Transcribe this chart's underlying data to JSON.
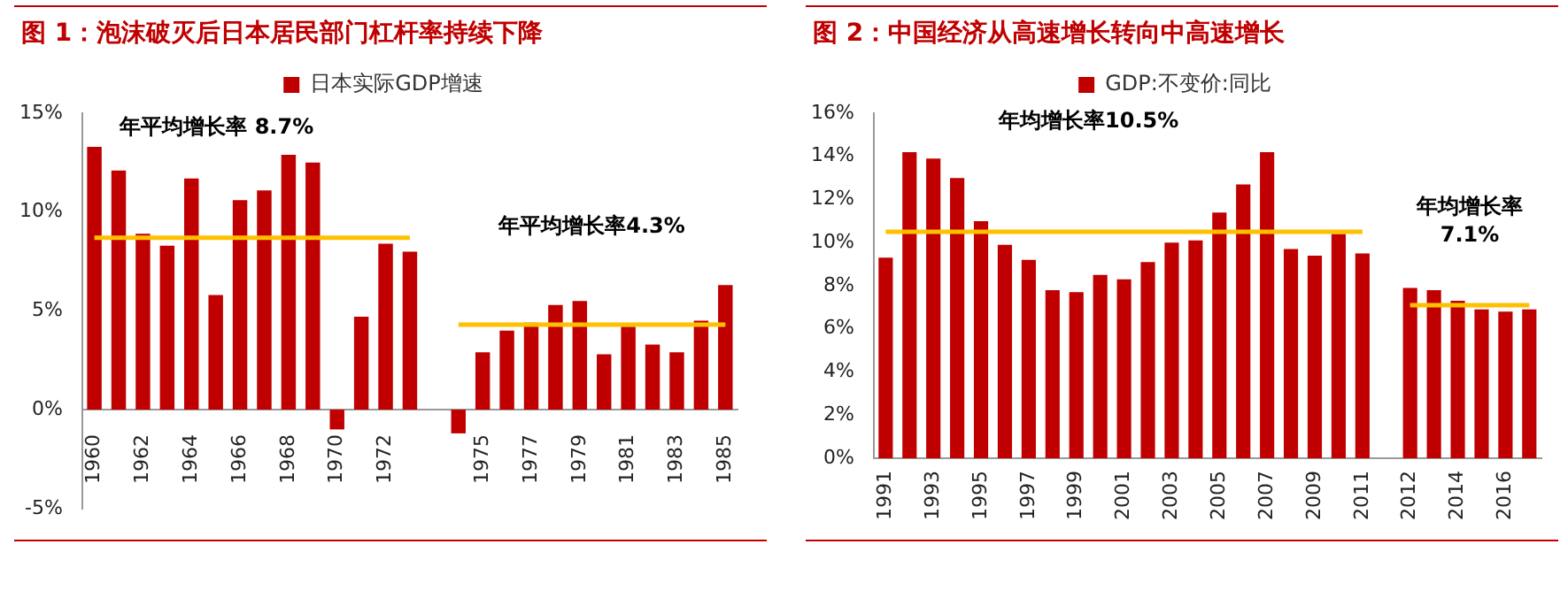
{
  "chart_data": [
    {
      "type": "bar",
      "title": "图 1：泡沫破灭后日本居民部门杠杆率持续下降",
      "categories": [
        "1960",
        null,
        "1962",
        null,
        "1964",
        null,
        "1966",
        null,
        "1968",
        null,
        "1970",
        null,
        "1972",
        null,
        null,
        null,
        "1975",
        null,
        "1977",
        null,
        "1979",
        null,
        "1981",
        null,
        "1983",
        null,
        "1985"
      ],
      "series": [
        {
          "name": "日本实际GDP增速",
          "color": "#c00000",
          "values": [
            13.3,
            12.1,
            8.9,
            8.3,
            11.7,
            5.8,
            10.6,
            11.1,
            12.9,
            12.5,
            -1.0,
            4.7,
            8.4,
            8.0,
            null,
            -1.2,
            2.9,
            4.0,
            4.4,
            5.3,
            5.5,
            2.8,
            4.2,
            3.3,
            2.9,
            4.5,
            6.3
          ]
        },
        {
          "type": "line",
          "color": "#ffc000",
          "values": [
            8.7,
            8.7,
            8.7,
            8.7,
            8.7,
            8.7,
            8.7,
            8.7,
            8.7,
            8.7,
            8.7,
            8.7,
            8.7,
            8.7,
            null,
            null,
            null,
            null,
            null,
            null,
            null,
            null,
            null,
            null,
            null,
            null,
            null
          ]
        },
        {
          "type": "line",
          "color": "#ffc000",
          "values": [
            null,
            null,
            null,
            null,
            null,
            null,
            null,
            null,
            null,
            null,
            null,
            null,
            null,
            null,
            null,
            4.3,
            4.3,
            4.3,
            4.3,
            4.3,
            4.3,
            4.3,
            4.3,
            4.3,
            4.3,
            4.3,
            4.3
          ]
        }
      ],
      "annotations": [
        "年平均增长率 8.7%",
        "年平均增长率4.3%"
      ],
      "ylim": [
        -5,
        15
      ],
      "yticks": [
        {
          "value": -5,
          "label": "-5%"
        },
        {
          "value": 0,
          "label": "0%"
        },
        {
          "value": 5,
          "label": "5%"
        },
        {
          "value": 10,
          "label": "10%"
        },
        {
          "value": 15,
          "label": "15%"
        }
      ],
      "legend": "top",
      "grid": false
    },
    {
      "type": "bar",
      "title": "图 2：中国经济从高速增长转向中高速增长",
      "categories": [
        "1991",
        null,
        "1993",
        null,
        "1995",
        null,
        "1997",
        null,
        "1999",
        null,
        "2001",
        null,
        "2003",
        null,
        "2005",
        null,
        "2007",
        null,
        "2009",
        null,
        "2011",
        null,
        "2012",
        null,
        "2014",
        null,
        "2016",
        null
      ],
      "series": [
        {
          "name": "GDP:不变价:同比",
          "color": "#c00000",
          "values": [
            9.3,
            14.2,
            13.9,
            13.0,
            11.0,
            9.9,
            9.2,
            7.8,
            7.7,
            8.5,
            8.3,
            9.1,
            10.0,
            10.1,
            11.4,
            12.7,
            14.2,
            9.7,
            9.4,
            10.4,
            9.5,
            null,
            7.9,
            7.8,
            7.3,
            6.9,
            6.8,
            6.9
          ]
        },
        {
          "type": "line",
          "color": "#ffc000",
          "values": [
            10.5,
            10.5,
            10.5,
            10.5,
            10.5,
            10.5,
            10.5,
            10.5,
            10.5,
            10.5,
            10.5,
            10.5,
            10.5,
            10.5,
            10.5,
            10.5,
            10.5,
            10.5,
            10.5,
            10.5,
            10.5,
            null,
            null,
            null,
            null,
            null,
            null,
            null
          ]
        },
        {
          "type": "line",
          "color": "#ffc000",
          "values": [
            null,
            null,
            null,
            null,
            null,
            null,
            null,
            null,
            null,
            null,
            null,
            null,
            null,
            null,
            null,
            null,
            null,
            null,
            null,
            null,
            null,
            null,
            7.1,
            7.1,
            7.1,
            7.1,
            7.1,
            7.1
          ]
        }
      ],
      "annotations": [
        "年均增长率10.5%",
        "年均增长率\n7.1%"
      ],
      "ylim": [
        0,
        16
      ],
      "yticks": [
        {
          "value": 0,
          "label": "0%"
        },
        {
          "value": 2,
          "label": "2%"
        },
        {
          "value": 4,
          "label": "4%"
        },
        {
          "value": 6,
          "label": "6%"
        },
        {
          "value": 8,
          "label": "8%"
        },
        {
          "value": 10,
          "label": "10%"
        },
        {
          "value": 12,
          "label": "12%"
        },
        {
          "value": 14,
          "label": "14%"
        },
        {
          "value": 16,
          "label": "16%"
        }
      ],
      "legend": "top",
      "grid": false
    }
  ]
}
